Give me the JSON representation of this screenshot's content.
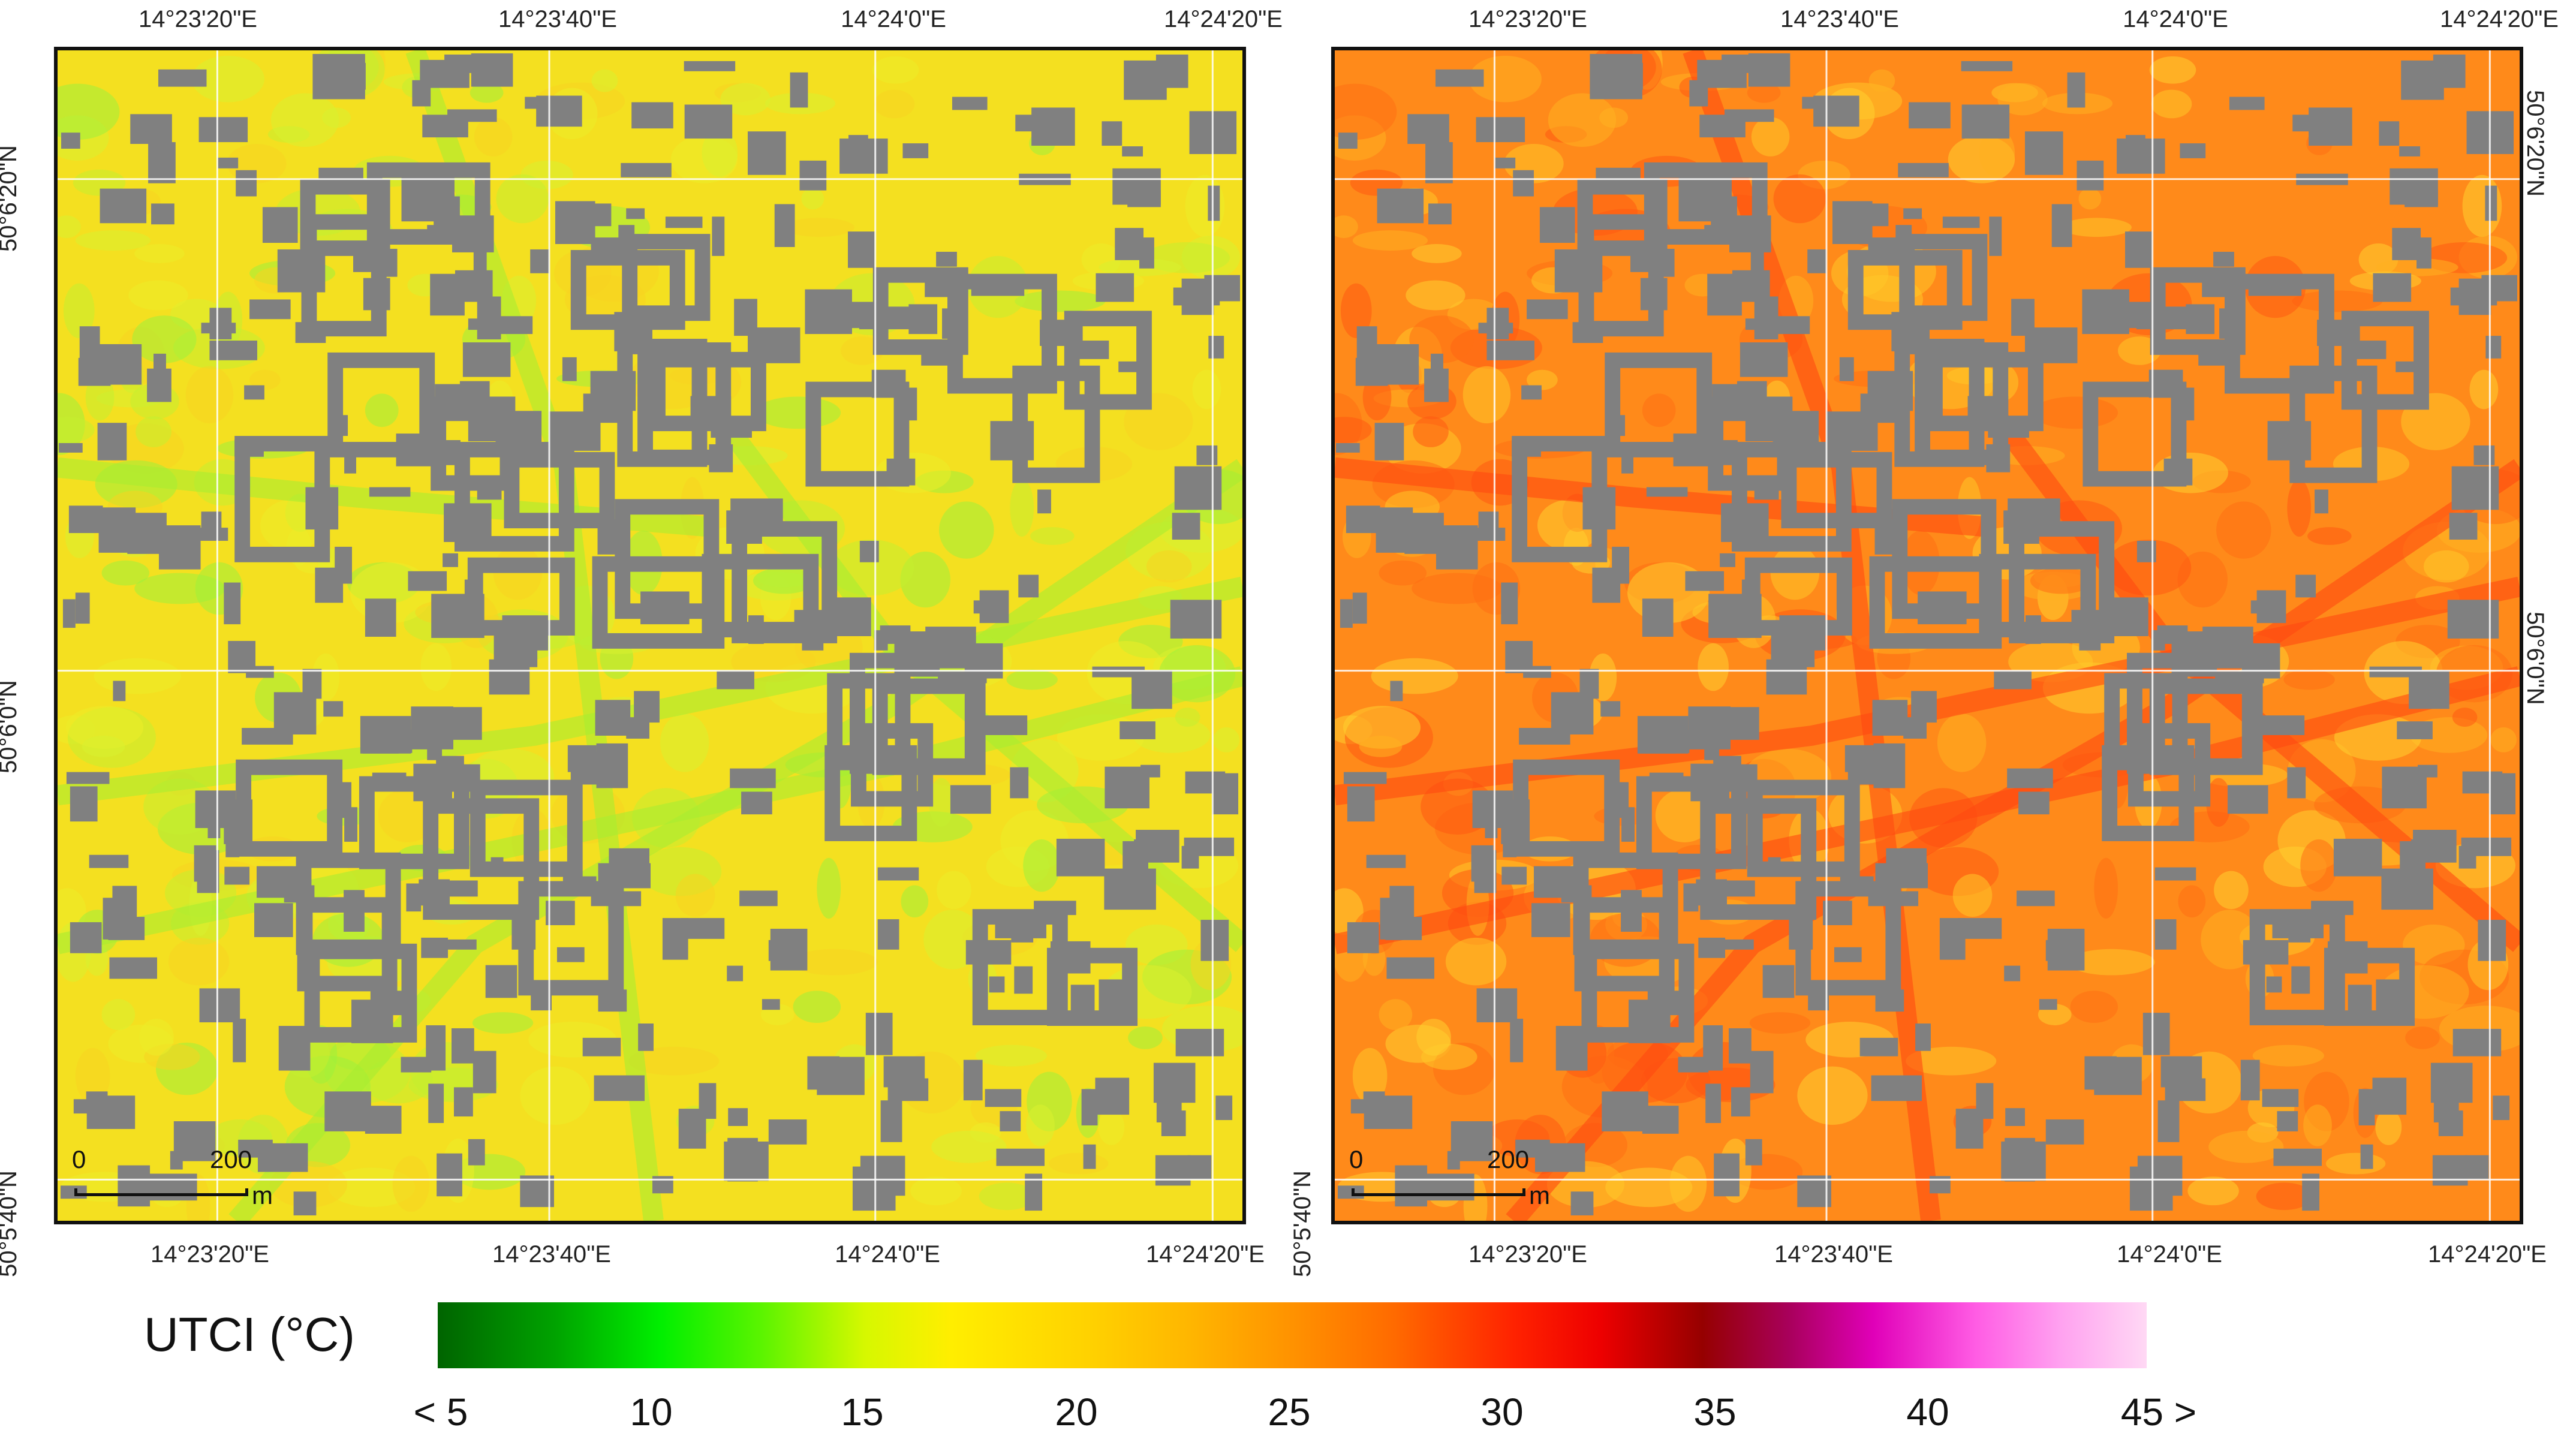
{
  "coords": {
    "lon_top": [
      "14°23'20\"E",
      "14°23'40\"E",
      "14°24'0\"E",
      "14°24'20\"E"
    ],
    "lon_bottom": [
      "14°23'20\"E",
      "14°23'40\"E",
      "14°24'0\"E",
      "14°24'20\"E"
    ],
    "lat": [
      "50°6'20\"N",
      "50°6'0\"N",
      "50°5'40\"N"
    ]
  },
  "scalebar": {
    "zero": "0",
    "distance": "200",
    "unit": "m"
  },
  "legend": {
    "title": "UTCI (°C)",
    "ticks": [
      "< 5",
      "10",
      "15",
      "20",
      "25",
      "30",
      "35",
      "40",
      "45 >"
    ]
  },
  "colors": {
    "buildings": "#808080",
    "left_base": "#f4e020",
    "right_base": "#ff8a1a"
  }
}
